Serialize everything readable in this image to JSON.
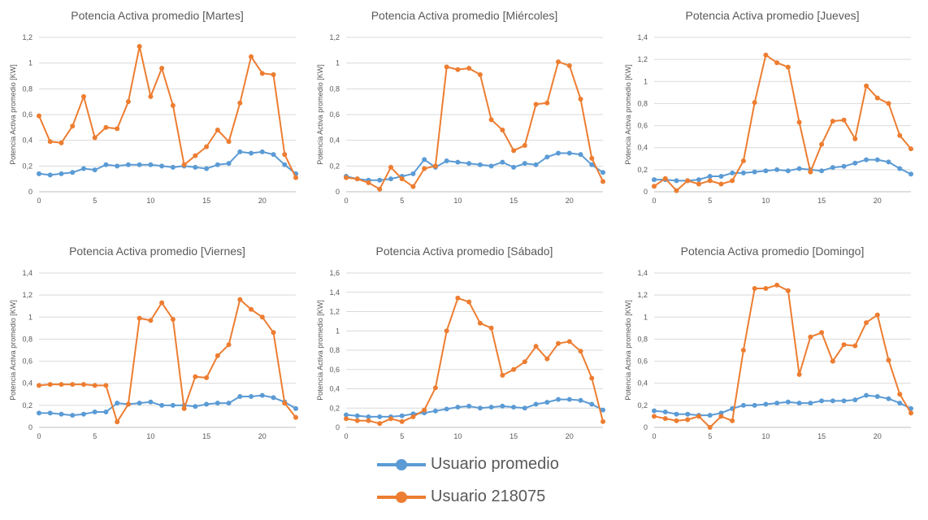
{
  "colors": {
    "blue": "#5B9BD5",
    "orange": "#ED7D31",
    "grid": "#D9D9D9",
    "axis": "#BFBFBF",
    "text": "#595959"
  },
  "legend": {
    "items": [
      {
        "label": "Usuario promedio",
        "color": "#5B9BD5"
      },
      {
        "label": "Usuario 218075",
        "color": "#ED7D31"
      }
    ]
  },
  "chart_data": [
    {
      "type": "line",
      "title": "Potencia Activa promedio [Martes]",
      "ylabel": "Potencia Activa promedio [KW]",
      "xlabel": "",
      "xlim": [
        0,
        23
      ],
      "xticks": [
        0,
        5,
        10,
        15,
        20
      ],
      "ylim": [
        0,
        1.2
      ],
      "yticks": [
        "0",
        "0,2",
        "0,4",
        "0,6",
        "0,8",
        "1",
        "1,2"
      ],
      "grid": true,
      "x": [
        0,
        1,
        2,
        3,
        4,
        5,
        6,
        7,
        8,
        9,
        10,
        11,
        12,
        13,
        14,
        15,
        16,
        17,
        18,
        19,
        20,
        21,
        22,
        23
      ],
      "series": [
        {
          "name": "Usuario promedio",
          "color": "#5B9BD5",
          "values": [
            0.14,
            0.13,
            0.14,
            0.15,
            0.18,
            0.17,
            0.21,
            0.2,
            0.21,
            0.21,
            0.21,
            0.2,
            0.19,
            0.2,
            0.19,
            0.18,
            0.21,
            0.22,
            0.31,
            0.3,
            0.31,
            0.29,
            0.21,
            0.14
          ]
        },
        {
          "name": "Usuario 218075",
          "color": "#ED7D31",
          "values": [
            0.59,
            0.39,
            0.38,
            0.51,
            0.74,
            0.42,
            0.5,
            0.49,
            0.7,
            1.13,
            0.74,
            0.96,
            0.67,
            0.21,
            0.28,
            0.35,
            0.48,
            0.39,
            0.69,
            1.05,
            0.92,
            0.91,
            0.29,
            0.11
          ]
        }
      ]
    },
    {
      "type": "line",
      "title": "Potencia Activa promedio [Miércoles]",
      "ylabel": "Potencia Activa promedio [KW]",
      "xlabel": "",
      "xlim": [
        0,
        23
      ],
      "xticks": [
        0,
        5,
        10,
        15,
        20
      ],
      "ylim": [
        0,
        1.2
      ],
      "yticks": [
        "0",
        "0,2",
        "0,4",
        "0,6",
        "0,8",
        "1",
        "1,2"
      ],
      "grid": true,
      "x": [
        0,
        1,
        2,
        3,
        4,
        5,
        6,
        7,
        8,
        9,
        10,
        11,
        12,
        13,
        14,
        15,
        16,
        17,
        18,
        19,
        20,
        21,
        22,
        23
      ],
      "series": [
        {
          "name": "Usuario promedio",
          "color": "#5B9BD5",
          "values": [
            0.12,
            0.1,
            0.09,
            0.09,
            0.1,
            0.12,
            0.14,
            0.25,
            0.19,
            0.24,
            0.23,
            0.22,
            0.21,
            0.2,
            0.23,
            0.19,
            0.22,
            0.21,
            0.27,
            0.3,
            0.3,
            0.29,
            0.21,
            0.15
          ]
        },
        {
          "name": "Usuario 218075",
          "color": "#ED7D31",
          "values": [
            0.11,
            0.1,
            0.07,
            0.02,
            0.19,
            0.1,
            0.04,
            0.18,
            0.2,
            0.97,
            0.95,
            0.96,
            0.91,
            0.56,
            0.48,
            0.32,
            0.36,
            0.68,
            0.69,
            1.01,
            0.98,
            0.72,
            0.26,
            0.08
          ]
        }
      ]
    },
    {
      "type": "line",
      "title": "Potencia Activa promedio [Jueves]",
      "ylabel": "Potencia Activa promedio [KW]",
      "xlabel": "",
      "xlim": [
        0,
        23
      ],
      "xticks": [
        0,
        5,
        10,
        15,
        20
      ],
      "ylim": [
        0,
        1.4
      ],
      "yticks": [
        "0",
        "0,2",
        "0,4",
        "0,6",
        "0,8",
        "1",
        "1,2",
        "1,4"
      ],
      "grid": true,
      "x": [
        0,
        1,
        2,
        3,
        4,
        5,
        6,
        7,
        8,
        9,
        10,
        11,
        12,
        13,
        14,
        15,
        16,
        17,
        18,
        19,
        20,
        21,
        22,
        23
      ],
      "series": [
        {
          "name": "Usuario promedio",
          "color": "#5B9BD5",
          "values": [
            0.11,
            0.11,
            0.1,
            0.1,
            0.11,
            0.14,
            0.14,
            0.17,
            0.17,
            0.18,
            0.19,
            0.2,
            0.19,
            0.21,
            0.2,
            0.19,
            0.22,
            0.23,
            0.26,
            0.29,
            0.29,
            0.27,
            0.21,
            0.16
          ]
        },
        {
          "name": "Usuario 218075",
          "color": "#ED7D31",
          "values": [
            0.05,
            0.12,
            0.01,
            0.1,
            0.07,
            0.1,
            0.07,
            0.1,
            0.28,
            0.81,
            1.24,
            1.17,
            1.13,
            0.63,
            0.18,
            0.43,
            0.64,
            0.65,
            0.48,
            0.96,
            0.85,
            0.8,
            0.51,
            0.39
          ]
        }
      ]
    },
    {
      "type": "line",
      "title": "Potencia Activa promedio [Viernes]",
      "ylabel": "Potencia Activa promedio [KW]",
      "xlabel": "",
      "xlim": [
        0,
        23
      ],
      "xticks": [
        0,
        5,
        10,
        15,
        20
      ],
      "ylim": [
        0,
        1.4
      ],
      "yticks": [
        "0",
        "0,2",
        "0,4",
        "0,6",
        "0,8",
        "1",
        "1,2",
        "1,4"
      ],
      "grid": true,
      "x": [
        0,
        1,
        2,
        3,
        4,
        5,
        6,
        7,
        8,
        9,
        10,
        11,
        12,
        13,
        14,
        15,
        16,
        17,
        18,
        19,
        20,
        21,
        22,
        23
      ],
      "series": [
        {
          "name": "Usuario promedio",
          "color": "#5B9BD5",
          "values": [
            0.13,
            0.13,
            0.12,
            0.11,
            0.12,
            0.14,
            0.14,
            0.22,
            0.21,
            0.22,
            0.23,
            0.2,
            0.2,
            0.2,
            0.19,
            0.21,
            0.22,
            0.22,
            0.28,
            0.28,
            0.29,
            0.27,
            0.23,
            0.17
          ]
        },
        {
          "name": "Usuario 218075",
          "color": "#ED7D31",
          "values": [
            0.38,
            0.39,
            0.39,
            0.39,
            0.39,
            0.38,
            0.38,
            0.05,
            0.21,
            0.99,
            0.97,
            1.13,
            0.98,
            0.17,
            0.46,
            0.45,
            0.65,
            0.75,
            1.16,
            1.07,
            1.0,
            0.86,
            0.22,
            0.09
          ]
        }
      ]
    },
    {
      "type": "line",
      "title": "Potencia Activa promedio [Sábado]",
      "ylabel": "Potencia Activa promedio [KW]",
      "xlabel": "",
      "xlim": [
        0,
        23
      ],
      "xticks": [
        0,
        5,
        10,
        15,
        20
      ],
      "ylim": [
        0,
        1.6
      ],
      "yticks": [
        "0",
        "0,2",
        "0,4",
        "0,6",
        "0,8",
        "1",
        "1,2",
        "1,4",
        "1,6"
      ],
      "grid": true,
      "x": [
        0,
        1,
        2,
        3,
        4,
        5,
        6,
        7,
        8,
        9,
        10,
        11,
        12,
        13,
        14,
        15,
        16,
        17,
        18,
        19,
        20,
        21,
        22,
        23
      ],
      "series": [
        {
          "name": "Usuario promedio",
          "color": "#5B9BD5",
          "values": [
            0.13,
            0.12,
            0.11,
            0.11,
            0.11,
            0.12,
            0.14,
            0.15,
            0.17,
            0.19,
            0.21,
            0.22,
            0.2,
            0.21,
            0.22,
            0.21,
            0.2,
            0.24,
            0.26,
            0.29,
            0.29,
            0.28,
            0.24,
            0.18
          ]
        },
        {
          "name": "Usuario 218075",
          "color": "#ED7D31",
          "values": [
            0.09,
            0.07,
            0.07,
            0.04,
            0.09,
            0.06,
            0.11,
            0.18,
            0.41,
            1.0,
            1.34,
            1.3,
            1.08,
            1.03,
            0.54,
            0.6,
            0.68,
            0.84,
            0.71,
            0.87,
            0.89,
            0.79,
            0.51,
            0.06
          ]
        }
      ]
    },
    {
      "type": "line",
      "title": "Potencia Activa promedio [Domingo]",
      "ylabel": "Potencia Activa promedio [KW]",
      "xlabel": "",
      "xlim": [
        0,
        23
      ],
      "xticks": [
        0,
        5,
        10,
        15,
        20
      ],
      "ylim": [
        0,
        1.4
      ],
      "yticks": [
        "0",
        "0,2",
        "0,4",
        "0,6",
        "0,8",
        "1",
        "1,2",
        "1,4"
      ],
      "grid": true,
      "x": [
        0,
        1,
        2,
        3,
        4,
        5,
        6,
        7,
        8,
        9,
        10,
        11,
        12,
        13,
        14,
        15,
        16,
        17,
        18,
        19,
        20,
        21,
        22,
        23
      ],
      "series": [
        {
          "name": "Usuario promedio",
          "color": "#5B9BD5",
          "values": [
            0.15,
            0.14,
            0.12,
            0.12,
            0.11,
            0.11,
            0.13,
            0.17,
            0.2,
            0.2,
            0.21,
            0.22,
            0.23,
            0.22,
            0.22,
            0.24,
            0.24,
            0.24,
            0.25,
            0.29,
            0.28,
            0.26,
            0.22,
            0.17
          ]
        },
        {
          "name": "Usuario 218075",
          "color": "#ED7D31",
          "values": [
            0.1,
            0.08,
            0.06,
            0.07,
            0.1,
            0.0,
            0.1,
            0.06,
            0.7,
            1.26,
            1.26,
            1.29,
            1.24,
            0.48,
            0.82,
            0.86,
            0.6,
            0.75,
            0.74,
            0.95,
            1.02,
            0.61,
            0.3,
            0.13
          ]
        }
      ]
    }
  ]
}
